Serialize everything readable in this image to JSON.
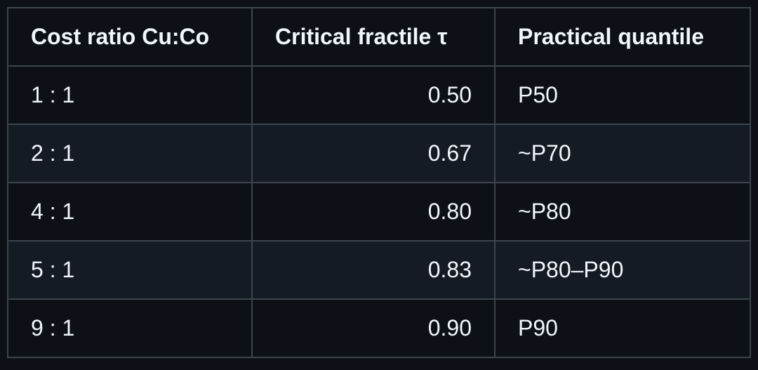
{
  "table": {
    "header": [
      "Cost ratio Cu:Co",
      "Critical fractile τ",
      "Practical quantile"
    ],
    "rows": [
      [
        "1 : 1",
        "0.50",
        "P50"
      ],
      [
        "2 : 1",
        "0.67",
        "~P70"
      ],
      [
        "4 : 1",
        "0.80",
        "~P80"
      ],
      [
        "5 : 1",
        "0.83",
        "~P80–P90"
      ],
      [
        "9 : 1",
        "0.90",
        "P90"
      ]
    ],
    "align": [
      "left",
      "right",
      "left"
    ]
  }
}
